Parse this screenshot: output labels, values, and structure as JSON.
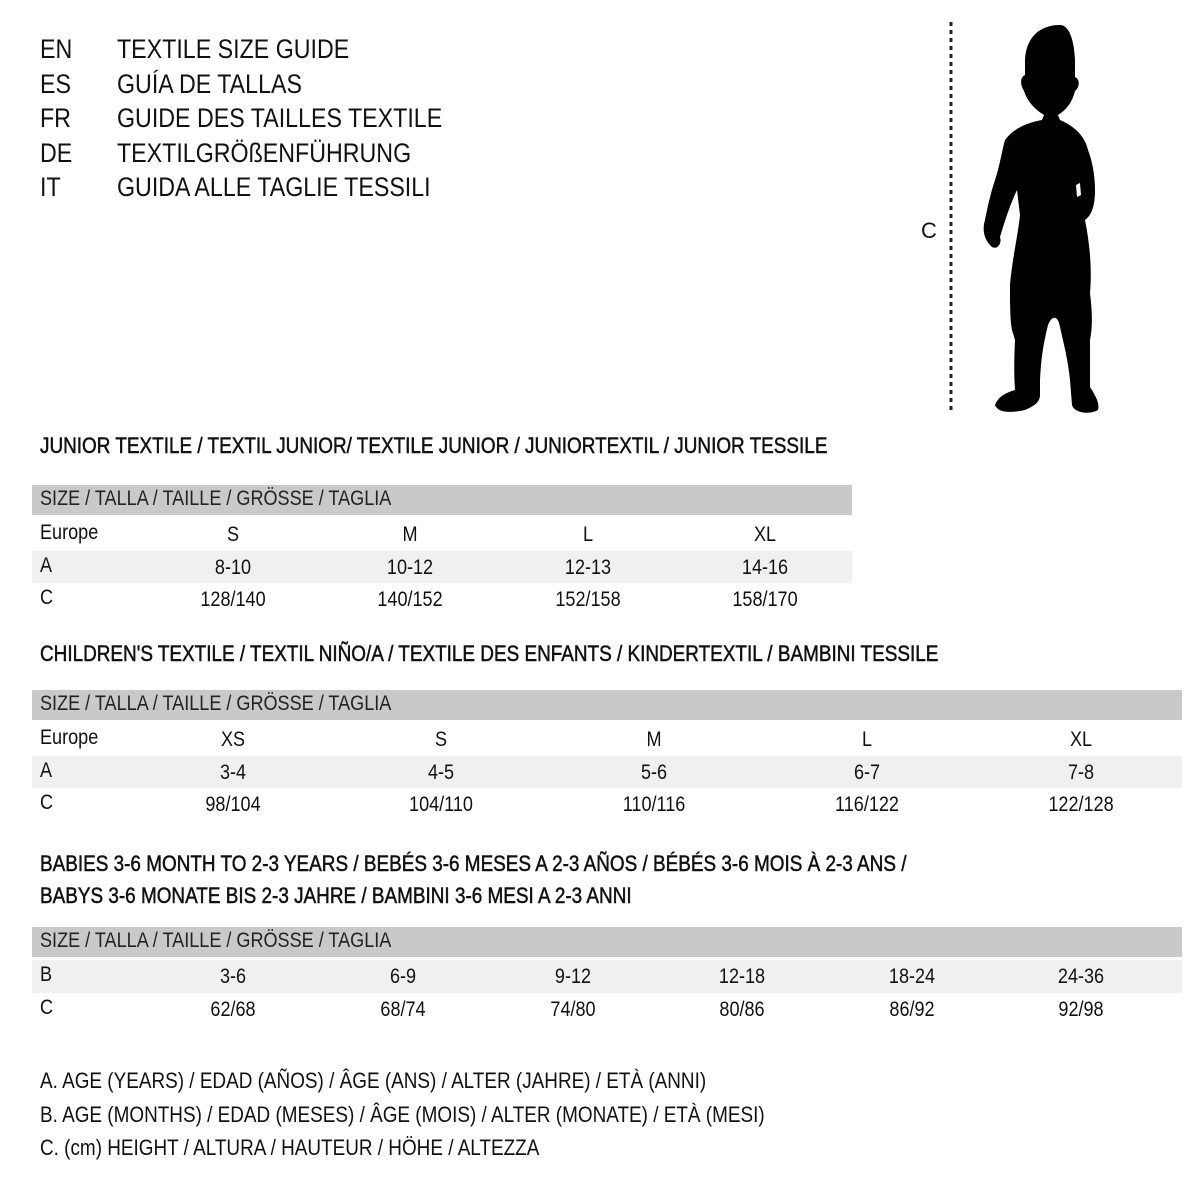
{
  "languages": [
    {
      "code": "EN",
      "title": "TEXTILE SIZE GUIDE"
    },
    {
      "code": "ES",
      "title": "GUÍA DE TALLAS"
    },
    {
      "code": "FR",
      "title": "GUIDE DES TAILLES TEXTILE"
    },
    {
      "code": "DE",
      "title": "TEXTILGRÖßENFÜHRUNG"
    },
    {
      "code": "IT",
      "title": "GUIDA ALLE TAGLIE TESSILI"
    }
  ],
  "figure": {
    "measure_label": "C",
    "icon": "child-silhouette-icon"
  },
  "colors": {
    "header_bg": "#c9c9c9",
    "row_shade": "#f0f0f0"
  },
  "sections": [
    {
      "heading": [
        "JUNIOR TEXTILE / TEXTIL JUNIOR/ TEXTILE JUNIOR / JUNIORTEXTIL / JUNIOR TESSILE"
      ],
      "header": "SIZE / TALLA / TAILLE / GRÖSSE / TAGLIA",
      "rows": [
        {
          "label": "Europe",
          "values": [
            "S",
            "M",
            "L",
            "XL"
          ]
        },
        {
          "label": "A",
          "values": [
            "8-10",
            "10-12",
            "12-13",
            "14-16"
          ]
        },
        {
          "label": "C",
          "values": [
            "128/140",
            "140/152",
            "152/158",
            "158/170"
          ]
        }
      ]
    },
    {
      "heading": [
        "CHILDREN'S TEXTILE / TEXTIL NIÑO/A / TEXTILE DES ENFANTS / KINDERTEXTIL / BAMBINI TESSILE"
      ],
      "header": "SIZE / TALLA / TAILLE / GRÖSSE / TAGLIA",
      "rows": [
        {
          "label": "Europe",
          "values": [
            "XS",
            "S",
            "M",
            "L",
            "XL"
          ]
        },
        {
          "label": "A",
          "values": [
            "3-4",
            "4-5",
            "5-6",
            "6-7",
            "7-8"
          ]
        },
        {
          "label": "C",
          "values": [
            "98/104",
            "104/110",
            "110/116",
            "116/122",
            "122/128"
          ]
        }
      ]
    },
    {
      "heading": [
        "BABIES 3-6 MONTH TO 2-3 YEARS / BEBÉS 3-6 MESES A 2-3 AÑOS / BÉBÉS 3-6 MOIS À 2-3 ANS /",
        "BABYS 3-6 MONATE BIS 2-3 JAHRE / BAMBINI 3-6 MESI A 2-3 ANNI"
      ],
      "header": "SIZE / TALLA / TAILLE / GRÖSSE / TAGLIA",
      "rows": [
        {
          "label": "B",
          "values": [
            "3-6",
            "6-9",
            "9-12",
            "12-18",
            "18-24",
            "24-36"
          ]
        },
        {
          "label": "C",
          "values": [
            "62/68",
            "68/74",
            "74/80",
            "80/86",
            "86/92",
            "92/98"
          ]
        }
      ]
    }
  ],
  "legend": [
    "A. AGE (YEARS) / EDAD (AÑOS) / ÂGE (ANS) / ALTER (JAHRE) / ETÀ (ANNI)",
    "B. AGE (MONTHS) / EDAD (MESES) / ÂGE (MOIS) / ALTER (MONATE) / ETÀ (MESI)",
    "C. (cm) HEIGHT / ALTURA / HAUTEUR / HÖHE / ALTEZZA"
  ]
}
